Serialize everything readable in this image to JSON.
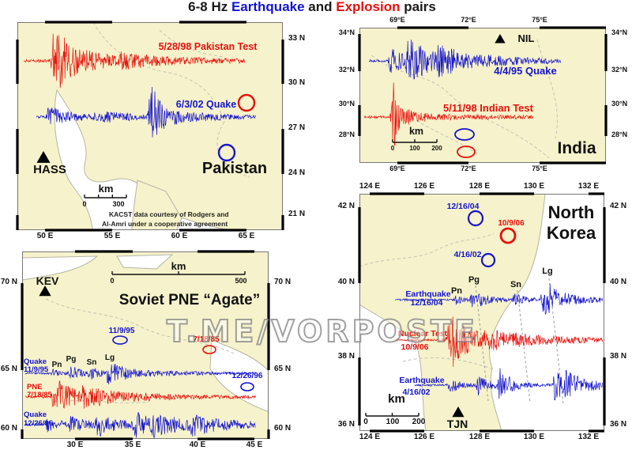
{
  "title": {
    "prefix": "6-8 Hz ",
    "earthquake": "Earthquake",
    "and": " and ",
    "explosion": "Explosion",
    "suffix": " pairs"
  },
  "watermark": "T.ME/VORPOSTE",
  "legend_colors": {
    "earthquake_blue": "#1414cf",
    "explosion_red": "#e8100c",
    "land": "#f6f2cb"
  },
  "panels": {
    "pakistan": {
      "name": "Pakistan",
      "station": "HASS",
      "trace_labels": {
        "explosion": "5/28/98 Pakistan Test",
        "earthquake": "6/3/02 Quake"
      },
      "scalebar": {
        "unit": "km",
        "ticks": [
          "0",
          "300"
        ]
      },
      "credit_line1": "KACST data courtesy of Rodgers and",
      "credit_line2": "Al-Amri under a cooperative agreement",
      "lat_labels": [
        "33 N",
        "30 N",
        "27 N",
        "24 N",
        "21 N"
      ],
      "lon_labels": [
        "50 E",
        "55 E",
        "60 E",
        "65 E"
      ]
    },
    "india": {
      "name": "India",
      "station": "NIL",
      "trace_labels": {
        "earthquake": "4/4/95 Quake",
        "explosion": "5/11/98 Indian Test"
      },
      "scalebar": {
        "unit": "km",
        "ticks": [
          "0",
          "100",
          "200"
        ]
      },
      "lat_labels": [
        "34°N",
        "32°N",
        "30°N",
        "28°N"
      ],
      "lon_labels": [
        "69°E",
        "72°E",
        "75°E"
      ]
    },
    "soviet": {
      "name": "Soviet PNE “Agate”",
      "station": "KEV",
      "event_labels": {
        "quake1": "11/9/95",
        "pne": "7/18/85",
        "quake2": "12/26/96"
      },
      "trace_labels": {
        "quake1a": "Quake",
        "quake1b": "11/9/95",
        "pnea": "PNE",
        "pneb": "7/18/85",
        "quake2a": "Quake",
        "quake2b": "12/26/96"
      },
      "phases": {
        "pn": "Pn",
        "pg": "Pg",
        "sn": "Sn",
        "lg": "Lg"
      },
      "scalebar": {
        "unit": "km",
        "ticks": [
          "0",
          "500"
        ]
      },
      "lat_labels": [
        "70 N",
        "65 N",
        "60 N"
      ],
      "lon_labels": [
        "30 E",
        "35 E",
        "40 E",
        "45 E"
      ]
    },
    "north_korea": {
      "name_line1": "North",
      "name_line2": "Korea",
      "station": "TJN",
      "event_labels": {
        "quake1": "12/16/04",
        "test": "10/9/06",
        "quake2": "4/16/02"
      },
      "trace_labels": {
        "quake1a": "Earthquake",
        "quake1b": "12/16/04",
        "testa": "Nuclear Test",
        "testb": "10/9/06",
        "quake2a": "Earthquake",
        "quake2b": "4/16/02"
      },
      "phases": {
        "pn": "Pn",
        "pg": "Pg",
        "sn": "Sn",
        "lg": "Lg"
      },
      "scalebar": {
        "unit": "km",
        "ticks": [
          "0",
          "100",
          "200"
        ]
      },
      "lat_labels": [
        "42 N",
        "40 N",
        "38 N",
        "36 N"
      ],
      "lon_labels": [
        "124 E",
        "126 E",
        "128 E",
        "130 E",
        "132 E"
      ]
    }
  }
}
